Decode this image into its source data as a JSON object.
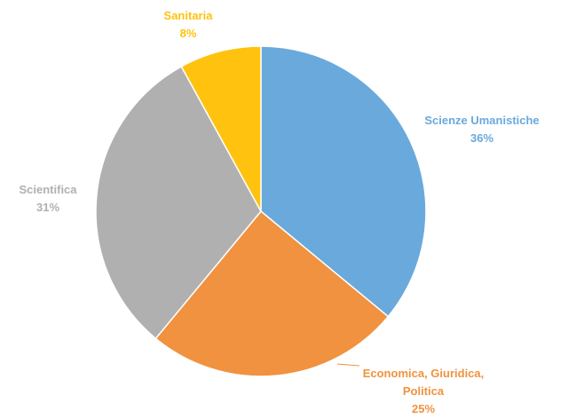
{
  "chart_data": {
    "type": "pie",
    "title": "",
    "start_angle_deg": 0,
    "direction": "clockwise",
    "legend": "none",
    "slices": [
      {
        "name": "Scienze Umanistiche",
        "label_lines": [
          "Scienze Umanistiche"
        ],
        "value": 36,
        "value_label": "36%",
        "color": "#6AA9DC"
      },
      {
        "name": "Economica, Giuridica, Politica",
        "label_lines": [
          "Economica, Giuridica,",
          "Politica"
        ],
        "value": 25,
        "value_label": "25%",
        "color": "#F0923F"
      },
      {
        "name": "Scientifica",
        "label_lines": [
          "Scientifica"
        ],
        "value": 31,
        "value_label": "31%",
        "color": "#B0B0B0"
      },
      {
        "name": "Sanitaria",
        "label_lines": [
          "Sanitaria"
        ],
        "value": 8,
        "value_label": "8%",
        "color": "#FFC20E"
      }
    ]
  }
}
